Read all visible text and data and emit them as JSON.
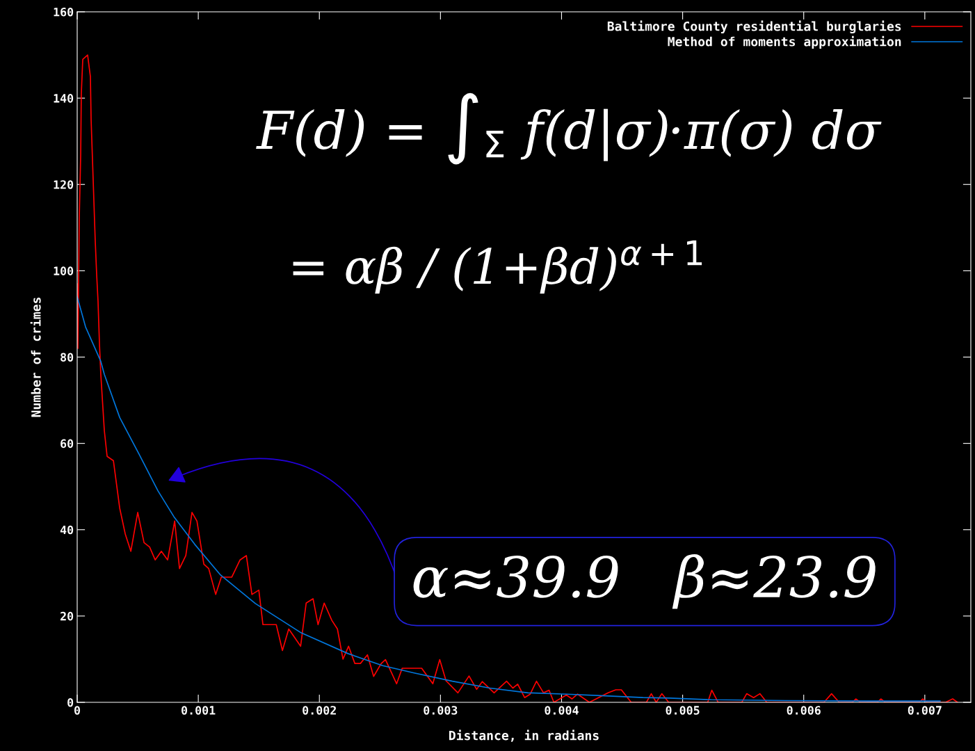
{
  "chart_data": {
    "type": "line",
    "xlabel": "Distance, in radians",
    "ylabel": "Number of crimes",
    "xlim": [
      0,
      0.00738
    ],
    "ylim": [
      0,
      160
    ],
    "xticks": [
      0,
      0.001,
      0.002,
      0.003,
      0.004,
      0.005,
      0.006,
      0.007
    ],
    "yticks": [
      0,
      20,
      40,
      60,
      80,
      100,
      120,
      140,
      160
    ],
    "grid": false,
    "legend": "top right",
    "marker": "none",
    "line_style": "solid",
    "series": [
      {
        "name": "Baltimore County residential burglaries",
        "color": "#ff0000",
        "x": [
          0,
          6e-06,
          1.7e-05,
          2.9e-05,
          3.4e-05,
          4.6e-05,
          8.6e-05,
          0.000109,
          0.000115,
          0.000126,
          0.000138,
          0.000149,
          0.000161,
          0.000172,
          0.000184,
          0.000195,
          0.000224,
          0.000247,
          0.000299,
          0.000351,
          0.000397,
          0.000443,
          0.0005,
          0.000552,
          0.000598,
          0.000644,
          0.000695,
          0.000747,
          0.000805,
          0.000845,
          0.000897,
          0.000948,
          0.000989,
          0.001046,
          0.001086,
          0.001144,
          0.00119,
          0.001276,
          0.001345,
          0.001397,
          0.001443,
          0.0015,
          0.001534,
          0.001644,
          0.001695,
          0.001747,
          0.001845,
          0.001891,
          0.001948,
          0.001989,
          0.00204,
          0.002103,
          0.002149,
          0.002195,
          0.002241,
          0.002293,
          0.002339,
          0.002397,
          0.002448,
          0.002511,
          0.002546,
          0.002638,
          0.002684,
          0.002845,
          0.002937,
          0.002994,
          0.003046,
          0.003144,
          0.003236,
          0.003299,
          0.003345,
          0.003443,
          0.003546,
          0.003598,
          0.003638,
          0.003695,
          0.003741,
          0.003793,
          0.003851,
          0.003897,
          0.003937,
          0.00404,
          0.004086,
          0.004132,
          0.00423,
          0.004385,
          0.004448,
          0.004494,
          0.004575,
          0.004701,
          0.004741,
          0.004782,
          0.004828,
          0.004885,
          0.005207,
          0.005241,
          0.005293,
          0.005489,
          0.005529,
          0.005586,
          0.005638,
          0.005695,
          0.006167,
          0.00623,
          0.006293,
          0.006402,
          0.006431,
          0.006466,
          0.006609,
          0.006638,
          0.006672,
          0.006954,
          0.006983,
          0.007017,
          0.007172,
          0.00723,
          0.00727
        ],
        "values": [
          97,
          82,
          112,
          127,
          141,
          149,
          150,
          145,
          135,
          126,
          116,
          107,
          99,
          93,
          83,
          76,
          63,
          57,
          56,
          45,
          39,
          35,
          44,
          37,
          36,
          33,
          35,
          33,
          42,
          31,
          34,
          44,
          42,
          32,
          31,
          25,
          29,
          29,
          33,
          34,
          25,
          26,
          18,
          18,
          12,
          17,
          13,
          23,
          24,
          18,
          23,
          19,
          17,
          10,
          13,
          9,
          9,
          11,
          6,
          9,
          9.9,
          4.3,
          7.9,
          7.9,
          4.3,
          9.9,
          5,
          2.2,
          6.1,
          3,
          4.8,
          2.2,
          4.9,
          3.3,
          4.2,
          1.1,
          1.9,
          4.9,
          2.2,
          2.8,
          0,
          1.7,
          0.8,
          1.9,
          0,
          2.2,
          2.9,
          2.9,
          0,
          0,
          2,
          0,
          2,
          0,
          0,
          2.8,
          0,
          0,
          2,
          1.1,
          2,
          0,
          0,
          2,
          0,
          0,
          0.8,
          0,
          0,
          0.8,
          0,
          0,
          0.8,
          0,
          0,
          0.8,
          0
        ]
      },
      {
        "name": "Method of moments approximation",
        "color": "#0077dd",
        "x": [
          0,
          6.9e-05,
          0.000195,
          0.000224,
          0.000351,
          0.000511,
          0.000667,
          0.000799,
          0.000971,
          0.001184,
          0.001471,
          0.00185,
          0.002236,
          0.002523,
          0.002782,
          0.003098,
          0.003408,
          0.003724,
          0.00404,
          0.004356,
          0.004672,
          0.00489,
          0.005236,
          0.00585,
          0.006557,
          0.007126
        ],
        "values": [
          94,
          87,
          79,
          76,
          66,
          57.5,
          49,
          43,
          36.6,
          29.5,
          22.9,
          16.1,
          11.3,
          8.5,
          6.8,
          4.9,
          3.3,
          2.2,
          1.9,
          1.5,
          1.1,
          1.0,
          0.6,
          0.4,
          0.3,
          0.3
        ]
      }
    ],
    "annotations": [
      "F(d) = ∫$_{Σ}$ f(d|σ)·π(σ) dσ",
      "= αβ / (1+βd)$^{α+1}$",
      "α≈39.9   β≈23.9"
    ]
  }
}
